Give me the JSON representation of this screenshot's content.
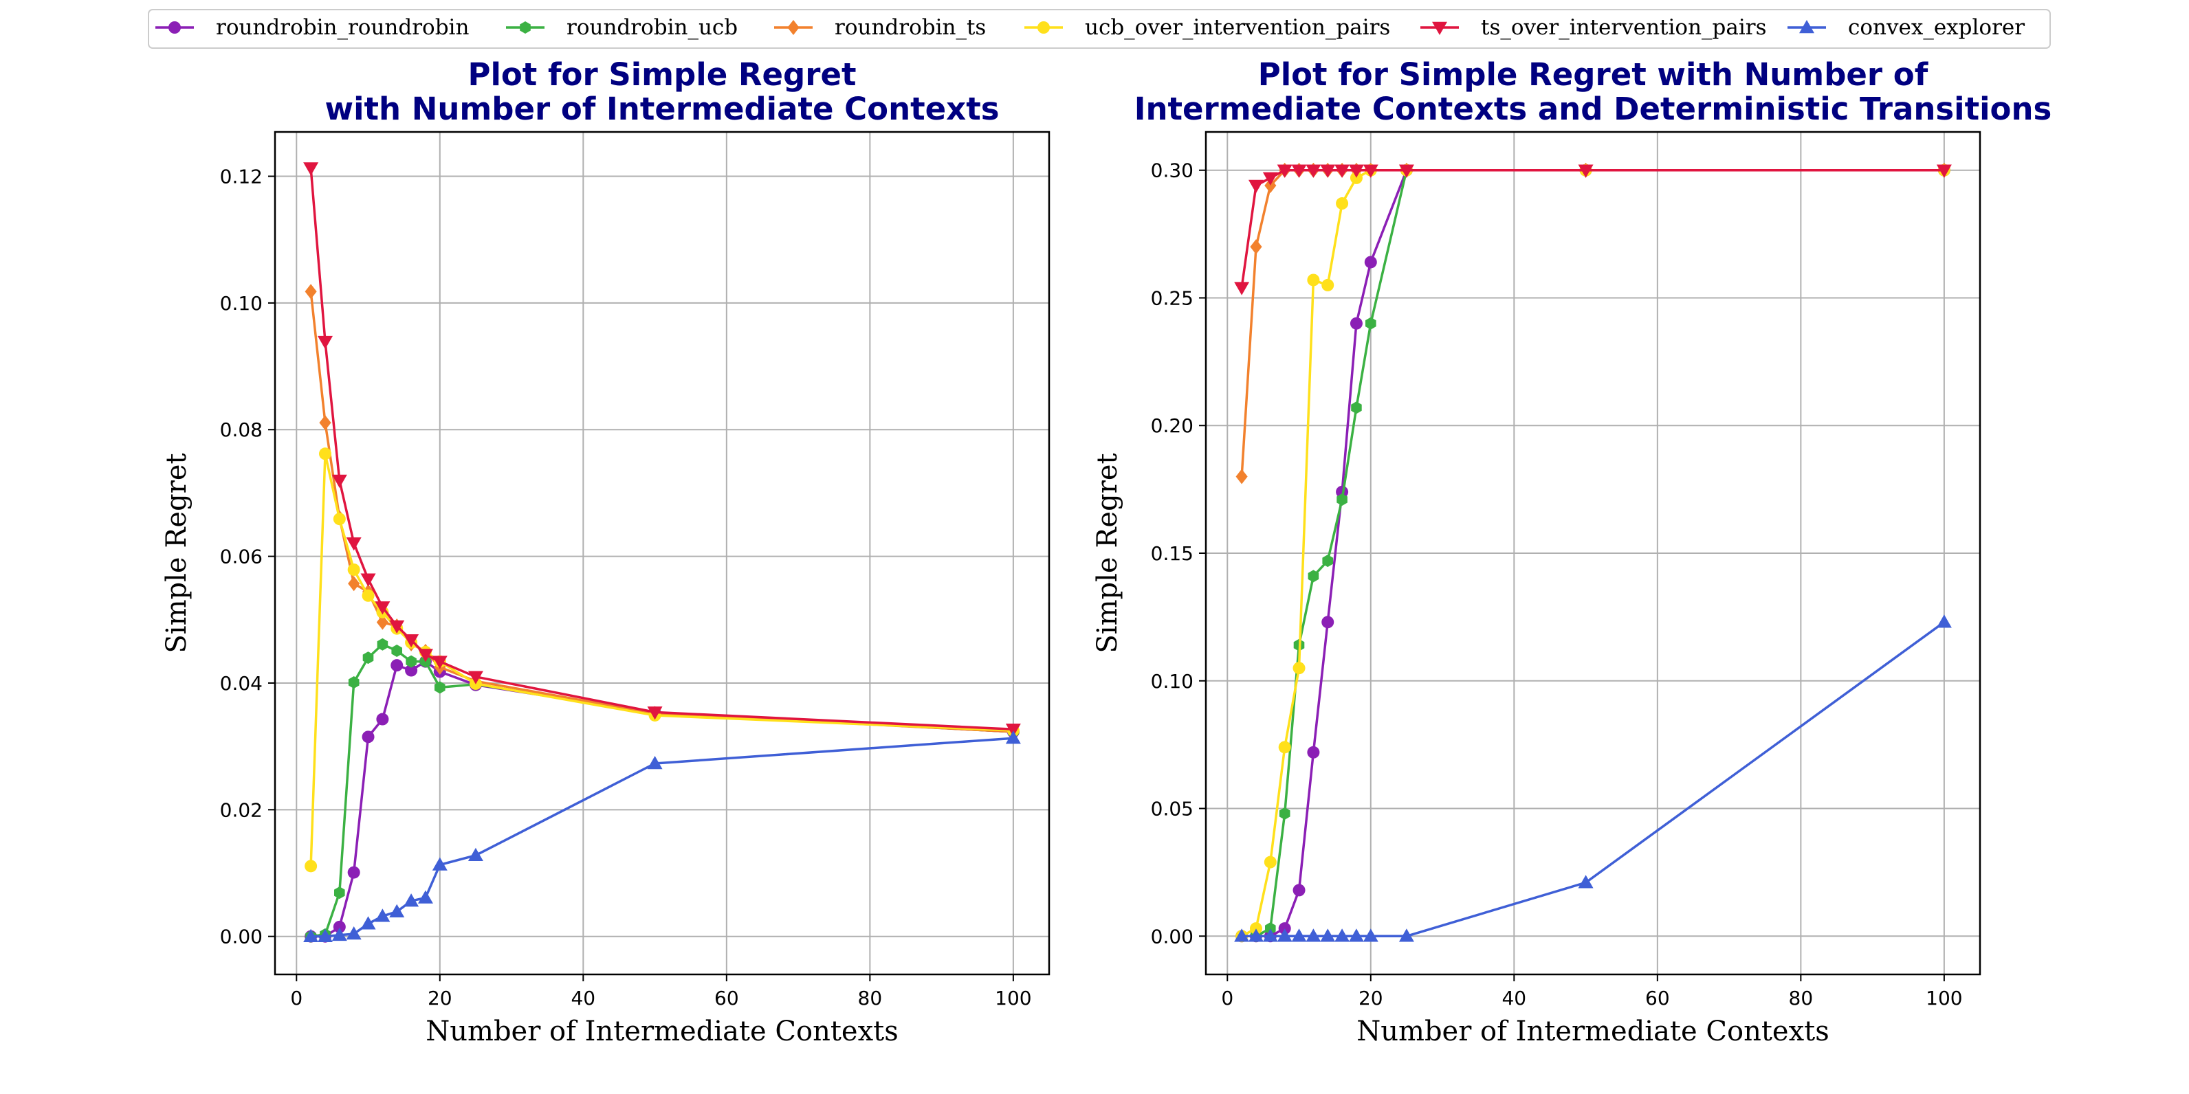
{
  "figure": {
    "title_color": "#000080",
    "legend": {
      "placement": "top-center",
      "entries": [
        {
          "name": "roundrobin_roundrobin",
          "color": "#8B1FB5",
          "marker": "circle"
        },
        {
          "name": "roundrobin_ucb",
          "color": "#3BB143",
          "marker": "hexagon"
        },
        {
          "name": "roundrobin_ts",
          "color": "#F2812D",
          "marker": "diamond"
        },
        {
          "name": "ucb_over_intervention_pairs",
          "color": "#FFE01B",
          "marker": "circle"
        },
        {
          "name": "ts_over_intervention_pairs",
          "color": "#E0153F",
          "marker": "triangle-down"
        },
        {
          "name": "convex_explorer",
          "color": "#3F5FD6",
          "marker": "triangle-up"
        }
      ]
    }
  },
  "chart_data": [
    {
      "type": "line",
      "title": [
        "Plot for Simple Regret",
        "with Number of Intermediate Contexts"
      ],
      "xlabel": "Number of Intermediate Contexts",
      "ylabel": "Simple Regret",
      "xlim": [
        -3,
        105
      ],
      "ylim": [
        -0.006,
        0.127
      ],
      "xticks": [
        0,
        20,
        40,
        60,
        80,
        100
      ],
      "yticks": [
        0.0,
        0.02,
        0.04,
        0.06,
        0.08,
        0.1,
        0.12
      ],
      "ytick_labels": [
        "0.00",
        "0.02",
        "0.04",
        "0.06",
        "0.08",
        "0.10",
        "0.12"
      ],
      "grid": true,
      "series": [
        {
          "name": "roundrobin_roundrobin",
          "x": [
            2,
            4,
            6,
            8,
            10,
            12,
            14,
            16,
            18,
            20,
            25,
            50,
            100
          ],
          "y": [
            0.0,
            0.0,
            0.0015,
            0.0101,
            0.0315,
            0.0343,
            0.0428,
            0.042,
            0.0434,
            0.0418,
            0.0397,
            0.0353,
            0.0323
          ]
        },
        {
          "name": "roundrobin_ucb",
          "x": [
            2,
            4,
            6,
            8,
            10,
            12,
            14,
            16,
            18,
            20,
            25,
            50,
            100
          ],
          "y": [
            0.0,
            0.0003,
            0.0069,
            0.0401,
            0.044,
            0.0461,
            0.0451,
            0.0434,
            0.0434,
            0.0393,
            0.0398,
            0.0353,
            0.0323
          ]
        },
        {
          "name": "roundrobin_ts",
          "x": [
            2,
            4,
            6,
            8,
            10,
            12,
            14,
            16,
            18,
            20,
            25,
            50,
            100
          ],
          "y": [
            0.1018,
            0.0811,
            0.0661,
            0.0557,
            0.0544,
            0.0496,
            0.049,
            0.0462,
            0.045,
            0.0425,
            0.0403,
            0.0352,
            0.0323
          ]
        },
        {
          "name": "ucb_over_intervention_pairs",
          "x": [
            2,
            4,
            6,
            8,
            10,
            12,
            14,
            16,
            18,
            20,
            25,
            50,
            100
          ],
          "y": [
            0.0111,
            0.0762,
            0.0659,
            0.0579,
            0.0538,
            0.0512,
            0.0486,
            0.0464,
            0.0449,
            0.0434,
            0.0399,
            0.0349,
            0.0325
          ]
        },
        {
          "name": "ts_over_intervention_pairs",
          "x": [
            2,
            4,
            6,
            8,
            10,
            12,
            14,
            16,
            18,
            20,
            25,
            50,
            100
          ],
          "y": [
            0.1213,
            0.0939,
            0.072,
            0.0621,
            0.0564,
            0.052,
            0.049,
            0.0468,
            0.0445,
            0.0434,
            0.041,
            0.0354,
            0.0327
          ]
        },
        {
          "name": "convex_explorer",
          "x": [
            2,
            4,
            6,
            8,
            10,
            12,
            14,
            16,
            18,
            20,
            25,
            50,
            100
          ],
          "y": [
            0.0,
            0.0,
            0.0002,
            0.0004,
            0.002,
            0.0032,
            0.0039,
            0.0056,
            0.0061,
            0.0113,
            0.0128,
            0.0273,
            0.0313
          ]
        }
      ]
    },
    {
      "type": "line",
      "title": [
        "Plot for Simple Regret with Number of",
        "Intermediate Contexts and Deterministic Transitions"
      ],
      "xlabel": "Number of Intermediate Contexts",
      "ylabel": "Simple Regret",
      "xlim": [
        -3,
        105
      ],
      "ylim": [
        -0.015,
        0.315
      ],
      "xticks": [
        0,
        20,
        40,
        60,
        80,
        100
      ],
      "yticks": [
        0.0,
        0.05,
        0.1,
        0.15,
        0.2,
        0.25,
        0.3
      ],
      "ytick_labels": [
        "0.00",
        "0.05",
        "0.10",
        "0.15",
        "0.20",
        "0.25",
        "0.30"
      ],
      "grid": true,
      "series": [
        {
          "name": "roundrobin_roundrobin",
          "x": [
            2,
            4,
            6,
            8,
            10,
            12,
            14,
            16,
            18,
            20,
            25,
            50,
            100
          ],
          "y": [
            0.0,
            0.0,
            0.0,
            0.003,
            0.018,
            0.072,
            0.123,
            0.174,
            0.24,
            0.264,
            0.3,
            0.3,
            0.3
          ]
        },
        {
          "name": "roundrobin_ucb",
          "x": [
            2,
            4,
            6,
            8,
            10,
            12,
            14,
            16,
            18,
            20,
            25,
            50,
            100
          ],
          "y": [
            0.0,
            0.0,
            0.003,
            0.048,
            0.114,
            0.141,
            0.147,
            0.171,
            0.207,
            0.24,
            0.3,
            0.3,
            0.3
          ]
        },
        {
          "name": "roundrobin_ts",
          "x": [
            2,
            4,
            6,
            8,
            10,
            12,
            14,
            16,
            18,
            20,
            25,
            50,
            100
          ],
          "y": [
            0.18,
            0.27,
            0.294,
            0.3,
            0.3,
            0.3,
            0.3,
            0.3,
            0.3,
            0.3,
            0.3,
            0.3,
            0.3
          ]
        },
        {
          "name": "ucb_over_intervention_pairs",
          "x": [
            2,
            4,
            6,
            8,
            10,
            12,
            14,
            16,
            18,
            20,
            25,
            50,
            100
          ],
          "y": [
            0.0,
            0.003,
            0.029,
            0.074,
            0.105,
            0.257,
            0.255,
            0.287,
            0.297,
            0.3,
            0.3,
            0.3,
            0.3
          ]
        },
        {
          "name": "ts_over_intervention_pairs",
          "x": [
            2,
            4,
            6,
            8,
            10,
            12,
            14,
            16,
            18,
            20,
            25,
            50,
            100
          ],
          "y": [
            0.254,
            0.294,
            0.297,
            0.3,
            0.3,
            0.3,
            0.3,
            0.3,
            0.3,
            0.3,
            0.3,
            0.3,
            0.3
          ]
        },
        {
          "name": "convex_explorer",
          "x": [
            2,
            4,
            6,
            8,
            10,
            12,
            14,
            16,
            18,
            20,
            25,
            50,
            100
          ],
          "y": [
            0.0,
            0.0,
            0.0,
            0.0,
            0.0,
            0.0,
            0.0,
            0.0,
            0.0,
            0.0,
            0.0,
            0.021,
            0.123
          ]
        }
      ]
    }
  ]
}
